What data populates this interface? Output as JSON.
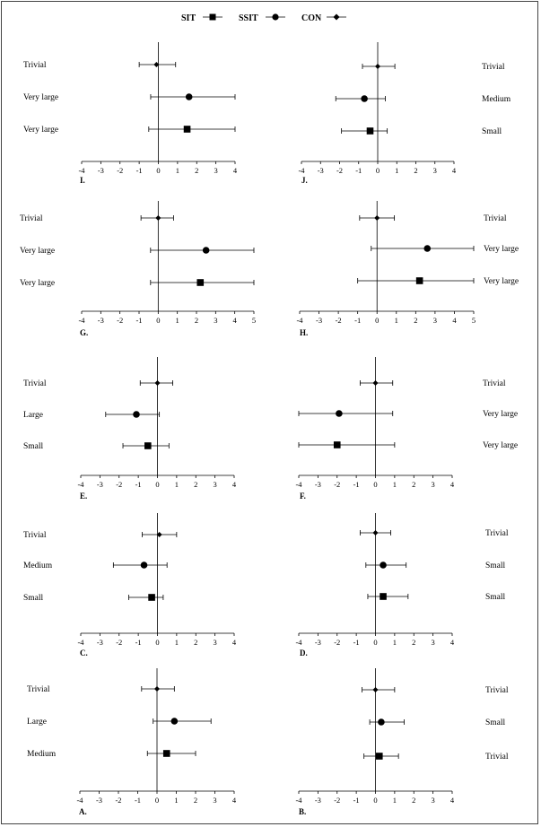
{
  "legend": {
    "entries": [
      {
        "label": "SIT",
        "marker": "square"
      },
      {
        "label": "SSIT",
        "marker": "circle"
      },
      {
        "label": "CON",
        "marker": "diamond"
      }
    ]
  },
  "chart_data": [
    {
      "panel": "I.",
      "type": "forest",
      "label_side": "left",
      "ticks": [
        -4,
        -3,
        -2,
        -1,
        0,
        1,
        2,
        3,
        4
      ],
      "xlim": [
        -4,
        4
      ],
      "rows": [
        {
          "group": "CON",
          "marker": "diamond",
          "label": "Trivial",
          "est": -0.1,
          "lo": -1.0,
          "hi": 0.9
        },
        {
          "group": "SSIT",
          "marker": "circle",
          "label": "Very large",
          "est": 1.6,
          "lo": -0.4,
          "hi": 4.0
        },
        {
          "group": "SIT",
          "marker": "square",
          "label": "Very large",
          "est": 1.5,
          "lo": -0.5,
          "hi": 4.0
        }
      ]
    },
    {
      "panel": "J.",
      "type": "forest",
      "label_side": "right",
      "ticks": [
        -4,
        -3,
        -2,
        -1,
        0,
        1,
        2,
        3,
        4
      ],
      "xlim": [
        -4,
        4
      ],
      "rows": [
        {
          "group": "CON",
          "marker": "diamond",
          "label": "Trivial",
          "est": 0.0,
          "lo": -0.8,
          "hi": 0.9
        },
        {
          "group": "SSIT",
          "marker": "circle",
          "label": "Medium",
          "est": -0.7,
          "lo": -2.2,
          "hi": 0.4
        },
        {
          "group": "SIT",
          "marker": "square",
          "label": "Small",
          "est": -0.4,
          "lo": -1.9,
          "hi": 0.5
        }
      ]
    },
    {
      "panel": "G.",
      "type": "forest",
      "label_side": "left",
      "ticks": [
        -4,
        -3,
        -2,
        -1,
        0,
        1,
        2,
        3,
        4,
        5
      ],
      "xlim": [
        -4,
        5
      ],
      "rows": [
        {
          "group": "CON",
          "marker": "diamond",
          "label": "Trivial",
          "est": 0.0,
          "lo": -0.9,
          "hi": 0.8
        },
        {
          "group": "SSIT",
          "marker": "circle",
          "label": "Very large",
          "est": 2.5,
          "lo": -0.4,
          "hi": 5.0
        },
        {
          "group": "SIT",
          "marker": "square",
          "label": "Very large",
          "est": 2.2,
          "lo": -0.4,
          "hi": 5.0
        }
      ]
    },
    {
      "panel": "H.",
      "type": "forest",
      "label_side": "right",
      "ticks": [
        -4,
        -3,
        -2,
        -1,
        0,
        1,
        2,
        3,
        4,
        5
      ],
      "xlim": [
        -4,
        5
      ],
      "rows": [
        {
          "group": "CON",
          "marker": "diamond",
          "label": "Trivial",
          "est": 0.0,
          "lo": -0.9,
          "hi": 0.9
        },
        {
          "group": "SSIT",
          "marker": "circle",
          "label": "Very large",
          "est": 2.6,
          "lo": -0.3,
          "hi": 5.0
        },
        {
          "group": "SIT",
          "marker": "square",
          "label": "Very large",
          "est": 2.2,
          "lo": -1.0,
          "hi": 5.0
        }
      ]
    },
    {
      "panel": "E.",
      "type": "forest",
      "label_side": "left",
      "ticks": [
        -4,
        -3,
        -2,
        -1,
        0,
        1,
        2,
        3,
        4
      ],
      "xlim": [
        -4,
        4
      ],
      "rows": [
        {
          "group": "CON",
          "marker": "diamond",
          "label": "Trivial",
          "est": 0.0,
          "lo": -0.9,
          "hi": 0.8
        },
        {
          "group": "SSIT",
          "marker": "circle",
          "label": "Large",
          "est": -1.1,
          "lo": -2.7,
          "hi": 0.1
        },
        {
          "group": "SIT",
          "marker": "square",
          "label": "Small",
          "est": -0.5,
          "lo": -1.8,
          "hi": 0.6
        }
      ]
    },
    {
      "panel": "F.",
      "type": "forest",
      "label_side": "right",
      "ticks": [
        -4,
        -3,
        -2,
        -1,
        0,
        1,
        2,
        3,
        4
      ],
      "xlim": [
        -4,
        4
      ],
      "rows": [
        {
          "group": "CON",
          "marker": "diamond",
          "label": "Trivial",
          "est": 0.0,
          "lo": -0.8,
          "hi": 0.9
        },
        {
          "group": "SSIT",
          "marker": "circle",
          "label": "Very large",
          "est": -1.9,
          "lo": -4.0,
          "hi": 0.9
        },
        {
          "group": "SIT",
          "marker": "square",
          "label": "Very large",
          "est": -2.0,
          "lo": -4.0,
          "hi": 1.0
        }
      ]
    },
    {
      "panel": "C.",
      "type": "forest",
      "label_side": "left",
      "ticks": [
        -4,
        -3,
        -2,
        -1,
        0,
        1,
        2,
        3,
        4
      ],
      "xlim": [
        -4,
        4
      ],
      "rows": [
        {
          "group": "CON",
          "marker": "diamond",
          "label": "Trivial",
          "est": 0.1,
          "lo": -0.8,
          "hi": 1.0
        },
        {
          "group": "SSIT",
          "marker": "circle",
          "label": "Medium",
          "est": -0.7,
          "lo": -2.3,
          "hi": 0.5
        },
        {
          "group": "SIT",
          "marker": "square",
          "label": "Small",
          "est": -0.3,
          "lo": -1.5,
          "hi": 0.3
        }
      ]
    },
    {
      "panel": "D.",
      "type": "forest",
      "label_side": "right",
      "ticks": [
        -4,
        -3,
        -2,
        -1,
        0,
        1,
        2,
        3,
        4
      ],
      "xlim": [
        -4,
        4
      ],
      "rows": [
        {
          "group": "CON",
          "marker": "diamond",
          "label": "Trivial",
          "est": 0.0,
          "lo": -0.8,
          "hi": 0.8
        },
        {
          "group": "SSIT",
          "marker": "circle",
          "label": "Small",
          "est": 0.4,
          "lo": -0.5,
          "hi": 1.6
        },
        {
          "group": "SIT",
          "marker": "square",
          "label": "Small",
          "est": 0.4,
          "lo": -0.4,
          "hi": 1.7
        }
      ]
    },
    {
      "panel": "A.",
      "type": "forest",
      "label_side": "left",
      "ticks": [
        -4,
        -3,
        -2,
        -1,
        0,
        1,
        2,
        3,
        4
      ],
      "xlim": [
        -4,
        4
      ],
      "rows": [
        {
          "group": "CON",
          "marker": "diamond",
          "label": "Trivial",
          "est": 0.0,
          "lo": -0.8,
          "hi": 0.9
        },
        {
          "group": "SSIT",
          "marker": "circle",
          "label": "Large",
          "est": 0.9,
          "lo": -0.2,
          "hi": 2.8
        },
        {
          "group": "SIT",
          "marker": "square",
          "label": "Medium",
          "est": 0.5,
          "lo": -0.5,
          "hi": 2.0
        }
      ]
    },
    {
      "panel": "B.",
      "type": "forest",
      "label_side": "right",
      "ticks": [
        -4,
        -3,
        -2,
        -1,
        0,
        1,
        2,
        3,
        4
      ],
      "xlim": [
        -4,
        4
      ],
      "rows": [
        {
          "group": "CON",
          "marker": "diamond",
          "label": "Trivial",
          "est": 0.0,
          "lo": -0.7,
          "hi": 1.0
        },
        {
          "group": "SSIT",
          "marker": "circle",
          "label": "Small",
          "est": 0.3,
          "lo": -0.3,
          "hi": 1.5
        },
        {
          "group": "SIT",
          "marker": "square",
          "label": "Trivial",
          "est": 0.2,
          "lo": -0.6,
          "hi": 1.2
        }
      ]
    }
  ]
}
